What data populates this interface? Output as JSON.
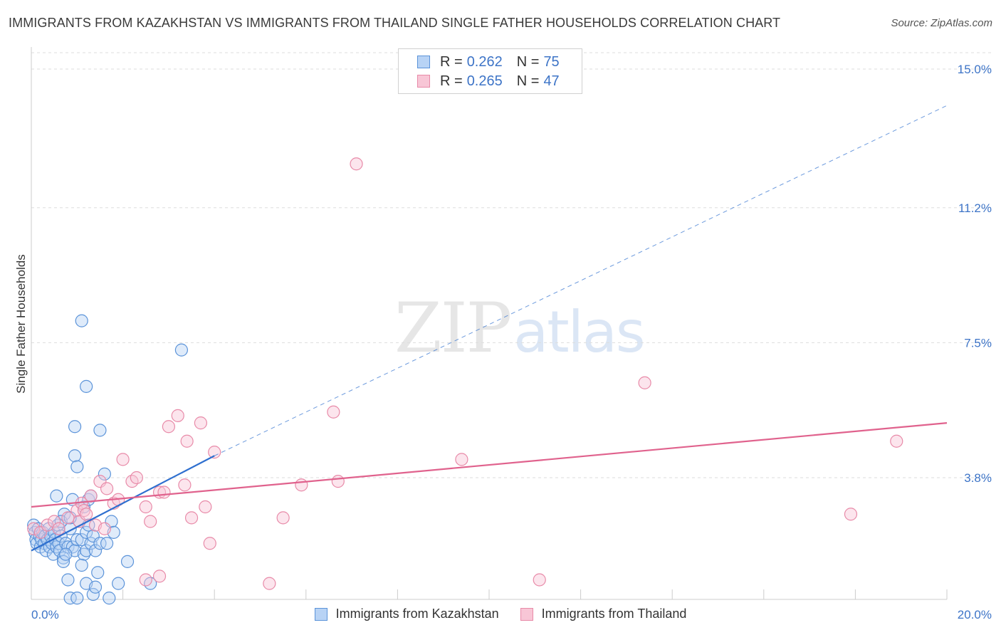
{
  "title": "IMMIGRANTS FROM KAZAKHSTAN VS IMMIGRANTS FROM THAILAND SINGLE FATHER HOUSEHOLDS CORRELATION CHART",
  "source": "Source: ZipAtlas.com",
  "watermark": {
    "zip": "ZIP",
    "atlas": "atlas"
  },
  "colors": {
    "blue_fill": "#b8d3f5",
    "blue_stroke": "#5b93d9",
    "blue_line": "#2e6fcf",
    "pink_fill": "#f8c6d6",
    "pink_stroke": "#e88aa8",
    "pink_line": "#e0628d",
    "grid": "#dddddd",
    "tick_text": "#3d74c7"
  },
  "legend_top": {
    "rows": [
      {
        "r_label": "R =",
        "r_value": "0.262",
        "n_label": "N =",
        "n_value": "75"
      },
      {
        "r_label": "R =",
        "r_value": "0.265",
        "n_label": "N =",
        "n_value": "47"
      }
    ]
  },
  "chart_data": {
    "type": "scatter",
    "title": "IMMIGRANTS FROM KAZAKHSTAN VS IMMIGRANTS FROM THAILAND SINGLE FATHER HOUSEHOLDS CORRELATION CHART",
    "xlabel": "",
    "ylabel": "Single Father Households",
    "xlim": [
      0,
      20
    ],
    "ylim": [
      0,
      15.5
    ],
    "x_tick_labels": [
      "0.0%",
      "20.0%"
    ],
    "y_ticks": [
      3.8,
      7.5,
      11.2,
      15.0
    ],
    "y_tick_labels": [
      "3.8%",
      "7.5%",
      "11.2%",
      "15.0%"
    ],
    "grid": true,
    "legend": "bottom-center",
    "series": [
      {
        "name": "Immigrants from Kazakhstan",
        "color": "blue",
        "trend": {
          "x0": 0.0,
          "y0": 1.8,
          "x1": 4.0,
          "y1": 4.4,
          "dash_to_x": 20.0,
          "dash_to_y": 14.0
        },
        "points": [
          [
            0.05,
            2.5
          ],
          [
            0.08,
            2.3
          ],
          [
            0.1,
            2.1
          ],
          [
            0.12,
            2.0
          ],
          [
            0.15,
            2.4
          ],
          [
            0.18,
            2.2
          ],
          [
            0.2,
            1.9
          ],
          [
            0.22,
            2.1
          ],
          [
            0.25,
            2.3
          ],
          [
            0.28,
            2.0
          ],
          [
            0.3,
            2.2
          ],
          [
            0.32,
            1.8
          ],
          [
            0.35,
            2.1
          ],
          [
            0.38,
            2.4
          ],
          [
            0.4,
            1.9
          ],
          [
            0.42,
            2.2
          ],
          [
            0.45,
            2.0
          ],
          [
            0.48,
            1.7
          ],
          [
            0.5,
            2.3
          ],
          [
            0.52,
            2.1
          ],
          [
            0.55,
            1.9
          ],
          [
            0.58,
            2.5
          ],
          [
            0.6,
            2.0
          ],
          [
            0.62,
            1.8
          ],
          [
            0.65,
            2.2
          ],
          [
            0.7,
            1.6
          ],
          [
            0.72,
            2.8
          ],
          [
            0.75,
            2.0
          ],
          [
            0.8,
            1.9
          ],
          [
            0.85,
            2.4
          ],
          [
            0.9,
            1.9
          ],
          [
            0.95,
            1.8
          ],
          [
            1.0,
            2.1
          ],
          [
            1.05,
            2.6
          ],
          [
            1.1,
            2.1
          ],
          [
            1.15,
            1.7
          ],
          [
            1.2,
            2.3
          ],
          [
            0.55,
            3.3
          ],
          [
            0.65,
            2.6
          ],
          [
            0.7,
            1.5
          ],
          [
            0.75,
            1.7
          ],
          [
            0.85,
            2.7
          ],
          [
            0.9,
            3.2
          ],
          [
            0.95,
            4.4
          ],
          [
            1.0,
            4.1
          ],
          [
            1.1,
            1.4
          ],
          [
            1.2,
            1.8
          ],
          [
            1.25,
            2.5
          ],
          [
            1.3,
            2.0
          ],
          [
            1.15,
            3.0
          ],
          [
            0.8,
            1.0
          ],
          [
            0.85,
            0.5
          ],
          [
            1.0,
            0.5
          ],
          [
            0.95,
            5.2
          ],
          [
            1.1,
            8.1
          ],
          [
            1.25,
            3.2
          ],
          [
            1.3,
            3.3
          ],
          [
            1.35,
            2.2
          ],
          [
            1.4,
            1.8
          ],
          [
            1.45,
            1.2
          ],
          [
            1.5,
            2.0
          ],
          [
            1.6,
            3.9
          ],
          [
            1.65,
            2.0
          ],
          [
            1.75,
            2.6
          ],
          [
            1.8,
            2.3
          ],
          [
            1.7,
            0.5
          ],
          [
            1.9,
            0.9
          ],
          [
            2.1,
            1.5
          ],
          [
            2.6,
            0.9
          ],
          [
            1.2,
            0.9
          ],
          [
            1.35,
            0.6
          ],
          [
            1.5,
            5.1
          ],
          [
            1.4,
            0.8
          ],
          [
            3.28,
            7.3
          ],
          [
            1.2,
            6.3
          ]
        ]
      },
      {
        "name": "Immigrants from Thailand",
        "color": "pink",
        "trend": {
          "x0": 0.0,
          "y0": 3.0,
          "x1": 20.0,
          "y1": 5.3
        },
        "points": [
          [
            0.05,
            2.4
          ],
          [
            0.2,
            2.3
          ],
          [
            0.35,
            2.5
          ],
          [
            0.5,
            2.6
          ],
          [
            0.6,
            2.4
          ],
          [
            0.8,
            2.7
          ],
          [
            1.0,
            2.9
          ],
          [
            1.05,
            2.6
          ],
          [
            1.1,
            3.1
          ],
          [
            1.15,
            2.9
          ],
          [
            1.2,
            2.8
          ],
          [
            1.3,
            3.3
          ],
          [
            1.4,
            2.5
          ],
          [
            1.5,
            3.7
          ],
          [
            1.6,
            2.4
          ],
          [
            1.65,
            3.5
          ],
          [
            1.8,
            3.1
          ],
          [
            1.9,
            3.2
          ],
          [
            2.0,
            4.3
          ],
          [
            2.2,
            3.7
          ],
          [
            2.3,
            3.8
          ],
          [
            2.5,
            3.0
          ],
          [
            2.6,
            2.6
          ],
          [
            2.8,
            3.4
          ],
          [
            2.9,
            3.4
          ],
          [
            3.0,
            5.2
          ],
          [
            3.2,
            5.5
          ],
          [
            3.35,
            3.6
          ],
          [
            3.4,
            4.8
          ],
          [
            3.5,
            2.7
          ],
          [
            3.7,
            5.3
          ],
          [
            3.8,
            3.0
          ],
          [
            3.9,
            2.0
          ],
          [
            4.0,
            4.5
          ],
          [
            2.8,
            1.1
          ],
          [
            2.5,
            1.0
          ],
          [
            5.2,
            0.9
          ],
          [
            5.5,
            2.7
          ],
          [
            5.9,
            3.6
          ],
          [
            6.6,
            5.6
          ],
          [
            6.7,
            3.7
          ],
          [
            7.1,
            12.4
          ],
          [
            9.4,
            4.3
          ],
          [
            11.1,
            1.0
          ],
          [
            13.4,
            6.4
          ],
          [
            17.9,
            2.8
          ],
          [
            18.9,
            4.8
          ]
        ]
      }
    ]
  }
}
